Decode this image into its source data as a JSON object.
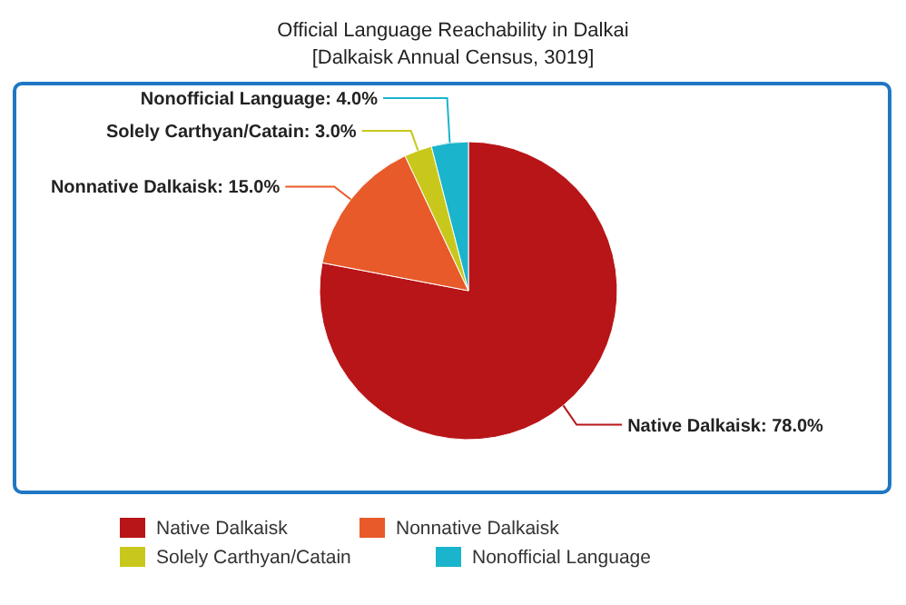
{
  "chart_data": {
    "type": "pie",
    "title": "Official Language Reachability in Dalkai",
    "subtitle": "[Dalkaisk Annual Census, 3019]",
    "categories": [
      "Native Dalkaisk",
      "Nonnative Dalkaisk",
      "Solely Carthyan/Catain",
      "Nonofficial Language"
    ],
    "values": [
      78,
      15,
      3,
      4
    ],
    "value_labels": [
      "Native Dalkaisk: 78.0%",
      "Nonnative Dalkaisk: 15.0%",
      "Solely Carthyan/Catain: 3.0%",
      "Nonofficial Language: 4.0%"
    ],
    "colors": [
      "#b81518",
      "#e85a2a",
      "#c8c81c",
      "#1ab4cc"
    ],
    "legend": "bottom"
  }
}
